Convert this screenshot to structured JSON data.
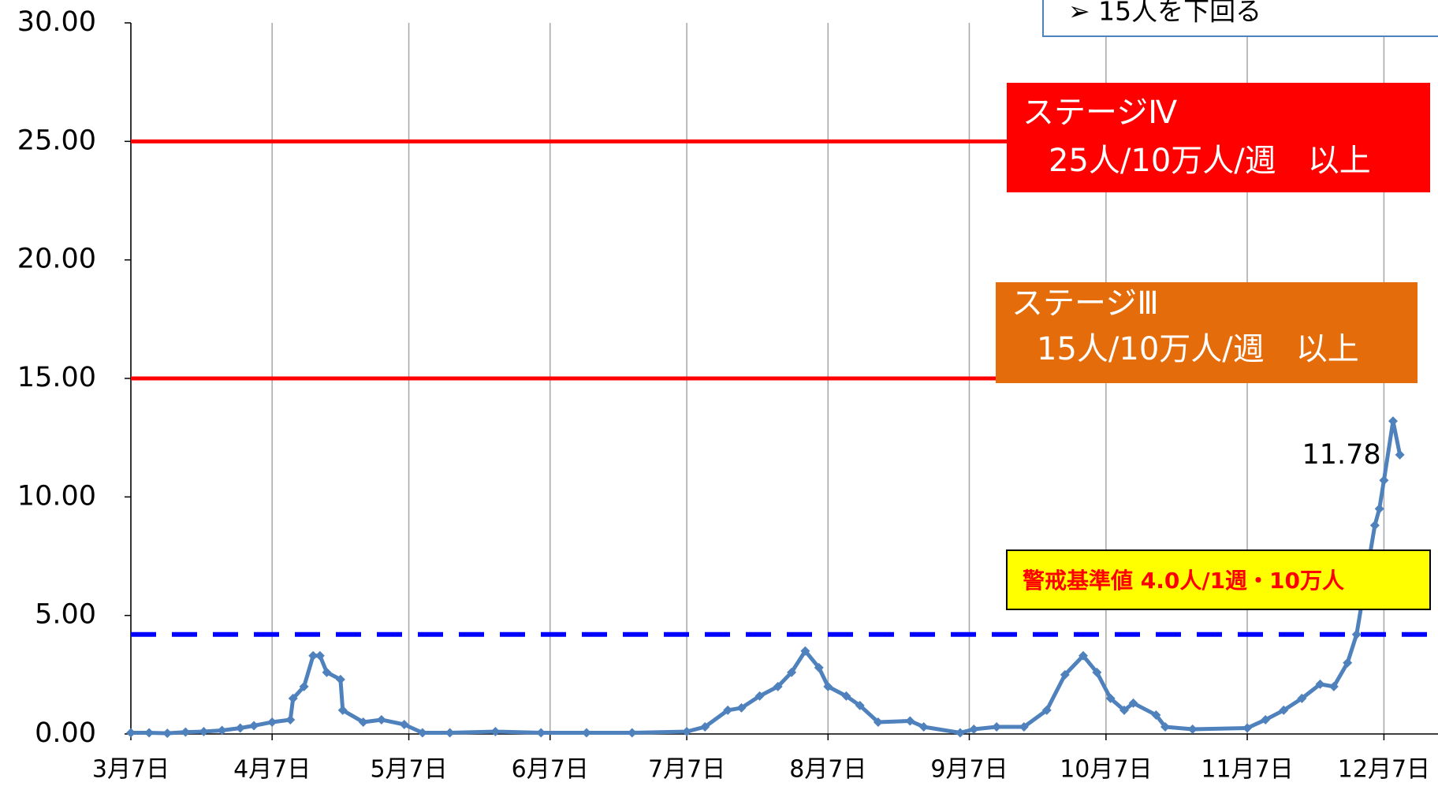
{
  "chart_data": {
    "type": "line",
    "x": [
      0,
      4,
      8,
      12,
      16,
      20,
      24,
      27,
      31,
      35,
      35.6,
      38,
      40,
      41.5,
      43,
      46,
      46.5,
      51,
      55,
      60,
      64,
      70,
      80,
      90,
      100,
      110,
      122,
      126,
      131,
      134,
      138,
      142,
      145,
      148,
      151,
      153,
      157,
      160,
      164,
      171,
      174,
      182,
      185,
      190,
      196,
      201,
      205,
      209,
      212,
      215,
      218,
      220,
      225,
      227,
      233,
      245,
      249,
      253,
      257,
      261,
      264,
      267,
      269,
      273,
      274,
      275,
      277,
      278.5
    ],
    "series": [
      {
        "color": "#4f81bd",
        "values": [
          0.05,
          0.05,
          0.03,
          0.08,
          0.1,
          0.15,
          0.25,
          0.35,
          0.5,
          0.6,
          1.5,
          2.0,
          3.3,
          3.3,
          2.6,
          2.3,
          1.0,
          0.5,
          0.6,
          0.4,
          0.05,
          0.05,
          0.1,
          0.05,
          0.05,
          0.05,
          0.1,
          0.3,
          1.0,
          1.1,
          1.6,
          2.0,
          2.6,
          3.5,
          2.8,
          2.0,
          1.6,
          1.2,
          0.5,
          0.55,
          0.3,
          0.05,
          0.2,
          0.3,
          0.3,
          1.0,
          2.5,
          3.3,
          2.6,
          1.5,
          1.0,
          1.3,
          0.8,
          0.3,
          0.2,
          0.25,
          0.6,
          1.0,
          1.5,
          2.1,
          2.0,
          3.0,
          4.2,
          8.8,
          9.5,
          10.7,
          13.2,
          11.78
        ],
        "value_labels": [
          null,
          null,
          null,
          null,
          null,
          null,
          null,
          null,
          null,
          null,
          null,
          null,
          null,
          null,
          null,
          null,
          null,
          null,
          null,
          null,
          null,
          null,
          null,
          null,
          null,
          null,
          null,
          null,
          null,
          null,
          null,
          null,
          null,
          null,
          null,
          null,
          null,
          null,
          null,
          null,
          null,
          null,
          null,
          null,
          null,
          null,
          null,
          null,
          null,
          null,
          null,
          null,
          null,
          null,
          null,
          null,
          null,
          null,
          null,
          null,
          null,
          null,
          null,
          null,
          null,
          null,
          null,
          "11.78"
        ]
      }
    ],
    "xlim": [
      0,
      286
    ],
    "xticks": [
      {
        "value": 0,
        "label": "3月7日"
      },
      {
        "value": 31,
        "label": "4月7日"
      },
      {
        "value": 61,
        "label": "5月7日"
      },
      {
        "value": 92,
        "label": "6月7日"
      },
      {
        "value": 122,
        "label": "7月7日"
      },
      {
        "value": 153,
        "label": "8月7日"
      },
      {
        "value": 184,
        "label": "9月7日"
      },
      {
        "value": 214,
        "label": "10月7日"
      },
      {
        "value": 245,
        "label": "11月7日"
      },
      {
        "value": 275,
        "label": "12月7日"
      }
    ],
    "ylim": [
      0,
      30
    ],
    "yticks": [
      {
        "value": 0,
        "label": "0.00"
      },
      {
        "value": 5,
        "label": "5.00"
      },
      {
        "value": 10,
        "label": "10.00"
      },
      {
        "value": 15,
        "label": "15.00"
      },
      {
        "value": 20,
        "label": "20.00"
      },
      {
        "value": 25,
        "label": "25.00"
      },
      {
        "value": 30,
        "label": "30.00"
      }
    ],
    "grid": true,
    "reference_lines": [
      {
        "value": 25,
        "color": "#ff0000"
      },
      {
        "value": 15,
        "color": "#ff0000"
      },
      {
        "value": 4.2,
        "color": "#0000ff",
        "dashed": true
      }
    ],
    "annotations": [
      {
        "text": [
          "➢ 15人を下回る"
        ],
        "color": "#ffffff"
      },
      {
        "text": [
          "ステージⅣ",
          "25人/10万人/週　以上"
        ],
        "color": "#ff0000"
      },
      {
        "text": [
          "ステージⅢ",
          "15人/10万人/週　以上"
        ],
        "color": "#e46c0a"
      },
      {
        "text": [
          "警戒基準値  4.0人/1週・10万人"
        ],
        "color": "#ffff00"
      }
    ]
  }
}
